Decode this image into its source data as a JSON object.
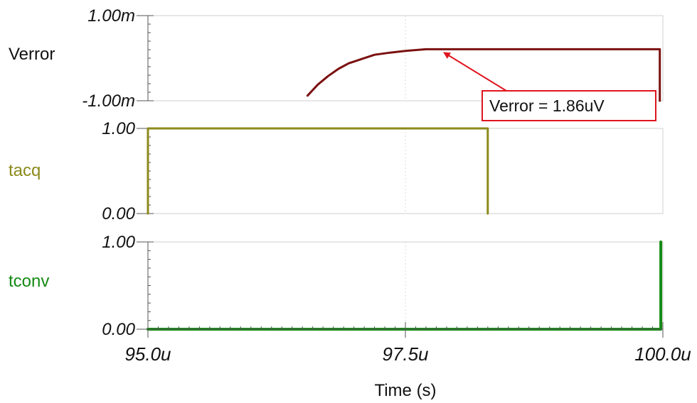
{
  "chart_data": {
    "type": "line",
    "xlabel": "Time (s)",
    "x_ticks": [
      {
        "value": 95.0,
        "label": "95.0u"
      },
      {
        "value": 97.5,
        "label": "97.5u"
      },
      {
        "value": 100.0,
        "label": "100.0u"
      }
    ],
    "xlim": [
      95.0,
      100.0
    ],
    "x_unit": "us",
    "grid": true,
    "panels": [
      {
        "name": "Verror",
        "color": "#7b1010",
        "ylim": [
          -1.0,
          1.0
        ],
        "y_unit": "mV",
        "y_ticks": [
          {
            "value": 1.0,
            "label": "1.00m"
          },
          {
            "value": -1.0,
            "label": "-1.00m"
          }
        ],
        "points": [
          [
            96.55,
            -0.88
          ],
          [
            96.65,
            -0.62
          ],
          [
            96.75,
            -0.42
          ],
          [
            96.85,
            -0.25
          ],
          [
            96.95,
            -0.12
          ],
          [
            97.05,
            -0.04
          ],
          [
            97.2,
            0.08
          ],
          [
            97.35,
            0.13
          ],
          [
            97.5,
            0.17
          ],
          [
            97.7,
            0.21
          ],
          [
            98.0,
            0.21
          ],
          [
            99.0,
            0.21
          ],
          [
            99.97,
            0.21
          ],
          [
            99.97,
            -1.0
          ]
        ],
        "annotation": {
          "text": "Verror = 1.86uV",
          "x": 97.85,
          "y": 0.21,
          "color": "#e0141e"
        }
      },
      {
        "name": "tacq",
        "color": "#8c8a1c",
        "ylim": [
          0.0,
          1.0
        ],
        "y_ticks": [
          {
            "value": 1.0,
            "label": "1.00"
          },
          {
            "value": 0.0,
            "label": "0.00"
          }
        ],
        "points": [
          [
            95.0,
            0.0
          ],
          [
            95.0,
            1.0
          ],
          [
            98.3,
            1.0
          ],
          [
            98.3,
            0.0
          ]
        ]
      },
      {
        "name": "tconv",
        "color": "#168a16",
        "ylim": [
          0.0,
          1.0
        ],
        "y_ticks": [
          {
            "value": 1.0,
            "label": "1.00"
          },
          {
            "value": 0.0,
            "label": "0.00"
          }
        ],
        "points": [
          [
            95.0,
            0.0
          ],
          [
            99.98,
            0.0
          ],
          [
            99.98,
            1.0
          ]
        ]
      }
    ]
  }
}
